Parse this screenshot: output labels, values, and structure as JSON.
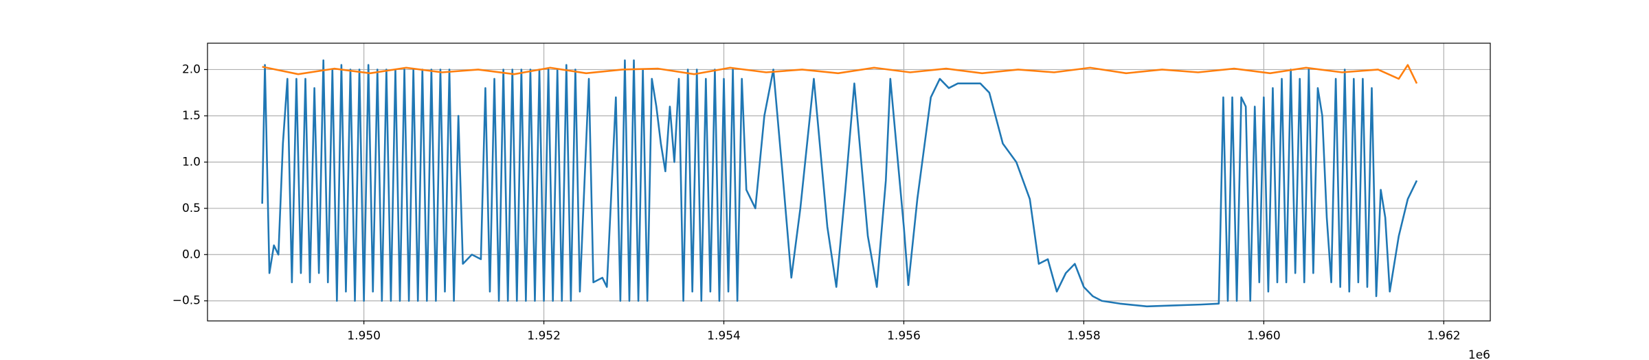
{
  "chart_data": {
    "type": "line",
    "x_offset_label": "1e6",
    "xlim": [
      1948262,
      1962517
    ],
    "ylim": [
      -0.717,
      2.285
    ],
    "xticks": [
      {
        "value": 1950000,
        "label": "1.950"
      },
      {
        "value": 1952000,
        "label": "1.952"
      },
      {
        "value": 1954000,
        "label": "1.954"
      },
      {
        "value": 1956000,
        "label": "1.956"
      },
      {
        "value": 1958000,
        "label": "1.958"
      },
      {
        "value": 1960000,
        "label": "1.960"
      },
      {
        "value": 1962000,
        "label": "1.962"
      }
    ],
    "yticks": [
      {
        "value": -0.5,
        "label": "−0.5"
      },
      {
        "value": 0,
        "label": "0.0"
      },
      0.5,
      {
        "value": 1,
        "label": "1.0"
      },
      1.5,
      {
        "value": 2,
        "label": "2.0"
      }
    ],
    "grid": true,
    "series": [
      {
        "color": "#1f77b4",
        "x": [
          1948870,
          1948900,
          1948950,
          1949000,
          1949050,
          1949100,
          1949150,
          1949200,
          1949250,
          1949300,
          1949350,
          1949400,
          1949450,
          1949500,
          1949550,
          1949600,
          1949650,
          1949700,
          1949750,
          1949800,
          1949850,
          1949900,
          1949950,
          1950000,
          1950050,
          1950100,
          1950150,
          1950200,
          1950250,
          1950300,
          1950350,
          1950400,
          1950450,
          1950500,
          1950550,
          1950600,
          1950650,
          1950700,
          1950750,
          1950800,
          1950850,
          1950900,
          1950950,
          1951000,
          1951050,
          1951100,
          1951200,
          1951300,
          1951350,
          1951400,
          1951450,
          1951500,
          1951550,
          1951600,
          1951650,
          1951700,
          1951750,
          1951800,
          1951850,
          1951900,
          1951950,
          1952000,
          1952050,
          1952100,
          1952150,
          1952200,
          1952250,
          1952300,
          1952350,
          1952400,
          1952500,
          1952550,
          1952650,
          1952700,
          1952800,
          1952850,
          1952900,
          1952950,
          1953000,
          1953050,
          1953100,
          1953150,
          1953200,
          1953250,
          1953300,
          1953350,
          1953400,
          1953450,
          1953500,
          1953550,
          1953600,
          1953650,
          1953700,
          1953750,
          1953800,
          1953850,
          1953900,
          1953950,
          1954000,
          1954050,
          1954100,
          1954150,
          1954200,
          1954250,
          1954350,
          1954450,
          1954550,
          1954650,
          1954750,
          1954850,
          1955000,
          1955150,
          1955250,
          1955350,
          1955450,
          1955600,
          1955700,
          1955800,
          1955850,
          1956000,
          1956050,
          1956150,
          1956300,
          1956400,
          1956500,
          1956600,
          1956700,
          1956850,
          1956950,
          1957100,
          1957250,
          1957400,
          1957500,
          1957600,
          1957700,
          1957800,
          1957900,
          1958000,
          1958100,
          1958200,
          1958400,
          1958700,
          1959000,
          1959300,
          1959500,
          1959550,
          1959600,
          1959650,
          1959700,
          1959750,
          1959800,
          1959850,
          1959900,
          1959950,
          1960000,
          1960050,
          1960100,
          1960150,
          1960200,
          1960250,
          1960300,
          1960350,
          1960400,
          1960450,
          1960500,
          1960550,
          1960600,
          1960650,
          1960700,
          1960750,
          1960800,
          1960850,
          1960900,
          1960950,
          1961000,
          1961050,
          1961100,
          1961150,
          1961200,
          1961250,
          1961300,
          1961350,
          1961400,
          1961500,
          1961600,
          1961700
        ],
        "values": [
          0.55,
          2.05,
          -0.2,
          0.1,
          0.0,
          1.2,
          1.9,
          -0.3,
          1.9,
          -0.2,
          1.9,
          -0.3,
          1.8,
          -0.2,
          2.1,
          -0.3,
          2.0,
          -0.5,
          2.05,
          -0.4,
          2.0,
          -0.5,
          2.0,
          -0.5,
          2.05,
          -0.4,
          2.0,
          -0.5,
          2.0,
          -0.5,
          2.0,
          -0.5,
          2.0,
          -0.5,
          2.0,
          -0.5,
          2.0,
          -0.5,
          2.0,
          -0.5,
          2.0,
          -0.4,
          2.0,
          -0.5,
          1.5,
          -0.1,
          0.0,
          -0.05,
          1.8,
          -0.4,
          1.9,
          -0.5,
          2.0,
          -0.5,
          2.0,
          -0.5,
          2.0,
          -0.5,
          2.0,
          -0.5,
          2.0,
          -0.5,
          2.0,
          -0.5,
          2.0,
          -0.5,
          2.05,
          -0.5,
          2.0,
          -0.4,
          1.9,
          -0.3,
          -0.25,
          -0.35,
          1.7,
          -0.5,
          2.1,
          -0.5,
          2.1,
          -0.5,
          2.0,
          -0.5,
          1.9,
          1.6,
          1.2,
          0.9,
          1.6,
          1.0,
          1.9,
          -0.5,
          2.0,
          -0.4,
          2.0,
          -0.5,
          1.9,
          -0.4,
          2.0,
          -0.5,
          1.9,
          -0.4,
          2.0,
          -0.5,
          1.9,
          0.7,
          0.5,
          1.5,
          2.0,
          0.9,
          -0.25,
          0.5,
          1.9,
          0.3,
          -0.35,
          0.7,
          1.85,
          0.2,
          -0.35,
          0.8,
          1.9,
          0.3,
          -0.33,
          0.6,
          1.7,
          1.9,
          1.8,
          1.85,
          1.85,
          1.85,
          1.75,
          1.2,
          1.0,
          0.6,
          -0.1,
          -0.05,
          -0.4,
          -0.2,
          -0.1,
          -0.35,
          -0.45,
          -0.5,
          -0.53,
          -0.56,
          -0.55,
          -0.54,
          -0.53,
          1.7,
          -0.5,
          1.7,
          -0.5,
          1.7,
          1.6,
          -0.5,
          1.6,
          -0.3,
          1.7,
          -0.4,
          1.8,
          -0.3,
          1.9,
          -0.3,
          2.0,
          -0.2,
          1.9,
          -0.3,
          2.0,
          -0.2,
          1.8,
          1.5,
          0.4,
          -0.3,
          1.9,
          -0.35,
          2.0,
          -0.4,
          1.9,
          -0.3,
          1.9,
          -0.35,
          1.8,
          -0.45,
          0.7,
          0.4,
          -0.4,
          0.2,
          0.6,
          0.8
        ]
      },
      {
        "color": "#ff7f0e",
        "x": [
          1948870,
          1949270,
          1949670,
          1950070,
          1950470,
          1950870,
          1951270,
          1951670,
          1952070,
          1952470,
          1952870,
          1953270,
          1953670,
          1954070,
          1954470,
          1954870,
          1955270,
          1955670,
          1956070,
          1956470,
          1956870,
          1957270,
          1957670,
          1958070,
          1958470,
          1958870,
          1959270,
          1959670,
          1960070,
          1960470,
          1960870,
          1961270,
          1961500,
          1961600,
          1961700
        ],
        "values": [
          2.03,
          1.95,
          2.01,
          1.96,
          2.02,
          1.97,
          2.0,
          1.95,
          2.02,
          1.96,
          2.0,
          2.01,
          1.95,
          2.02,
          1.97,
          2.0,
          1.96,
          2.02,
          1.97,
          2.01,
          1.96,
          2.0,
          1.97,
          2.02,
          1.96,
          2.0,
          1.97,
          2.01,
          1.96,
          2.02,
          1.97,
          2.0,
          1.9,
          2.05,
          1.85
        ]
      }
    ]
  }
}
